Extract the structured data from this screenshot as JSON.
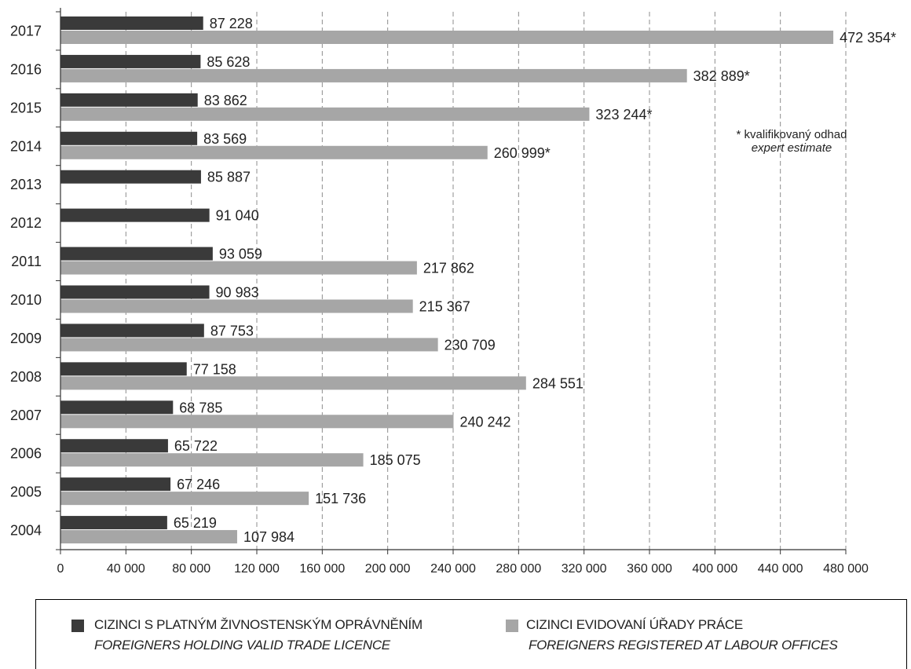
{
  "chart_data": {
    "type": "bar",
    "orientation": "horizontal",
    "categories": [
      "2017",
      "2016",
      "2015",
      "2014",
      "2013",
      "2012",
      "2011",
      "2010",
      "2009",
      "2008",
      "2007",
      "2006",
      "2005",
      "2004"
    ],
    "series": [
      {
        "name": "CIZINCI S PLATNÝM ŽIVNOSTENSKÝM OPRÁVNĚNÍM",
        "name_en": "FOREIGNERS HOLDING VALID TRADE LICENCE",
        "color": "#3a3a3a",
        "values": [
          87228,
          85628,
          83862,
          83569,
          85887,
          91040,
          93059,
          90983,
          87753,
          77158,
          68785,
          65722,
          67246,
          65219
        ],
        "labels": [
          "87 228",
          "85 628",
          "83 862",
          "83 569",
          "85 887",
          "91 040",
          "93 059",
          "90 983",
          "87 753",
          "77 158",
          "68 785",
          "65 722",
          "67 246",
          "65 219"
        ]
      },
      {
        "name": "CIZINCI EVIDOVANÍ ÚŘADY PRÁCE",
        "name_en": "FOREIGNERS REGISTERED AT LABOUR OFFICES",
        "color": "#a6a6a6",
        "values": [
          472354,
          382889,
          323244,
          260999,
          null,
          null,
          217862,
          215367,
          230709,
          284551,
          240242,
          185075,
          151736,
          107984
        ],
        "labels": [
          "472 354*",
          "382 889*",
          "323 244*",
          "260 999*",
          "",
          "",
          "217 862",
          "215 367",
          "230 709",
          "284 551",
          "240 242",
          "185 075",
          "151 736",
          "107 984"
        ]
      }
    ],
    "xlim": [
      0,
      480000
    ],
    "x_ticks": [
      0,
      40000,
      80000,
      120000,
      160000,
      200000,
      240000,
      280000,
      320000,
      360000,
      400000,
      440000,
      480000
    ],
    "x_tick_labels": [
      "0",
      "40 000",
      "80 000",
      "120 000",
      "160 000",
      "200 000",
      "240 000",
      "280 000",
      "320 000",
      "360 000",
      "400 000",
      "440 000",
      "480 000"
    ],
    "grid": "vertical-dashed",
    "legend_placement": "bottom",
    "note": {
      "line1": "* kvalifikovaný odhad",
      "line2": "expert estimate"
    }
  }
}
